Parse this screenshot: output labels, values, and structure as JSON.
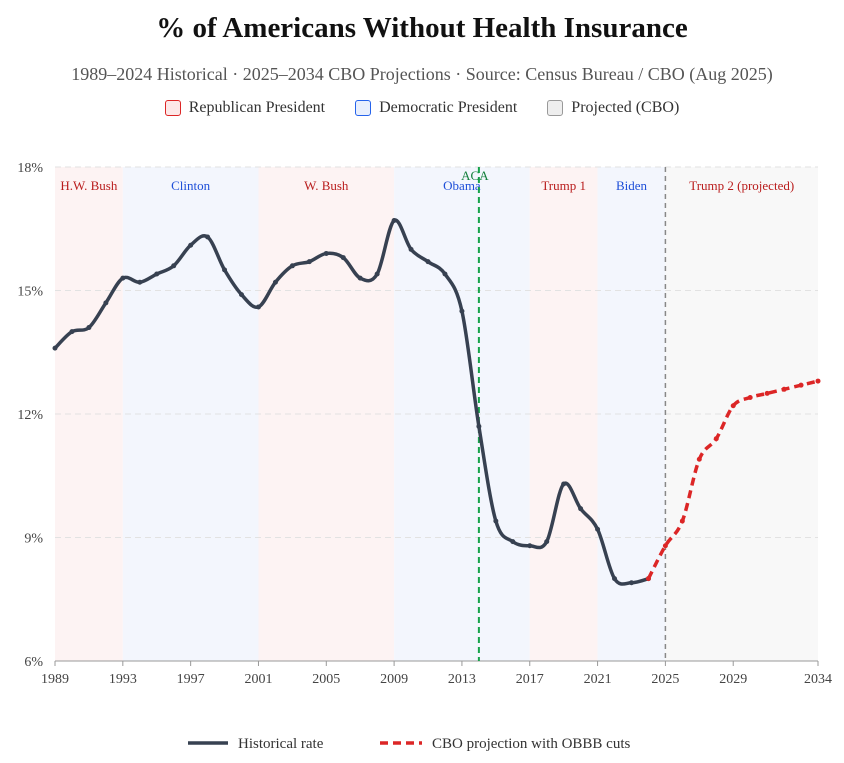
{
  "chart_data": {
    "type": "line",
    "title": "% of Americans Without Health Insurance",
    "subtitle": "1989–2024 Historical · 2025–2034 CBO Projections · Source: Census Bureau / CBO (Aug 2025)",
    "ylim": [
      6,
      18
    ],
    "xlim": [
      1989,
      2034
    ],
    "yticks": [
      6,
      9,
      12,
      15,
      18
    ],
    "ytick_labels": [
      "6%",
      "9%",
      "12%",
      "15%",
      "18%"
    ],
    "xticks": [
      1989,
      1993,
      1997,
      2001,
      2005,
      2009,
      2013,
      2017,
      2021,
      2025,
      2029,
      2034
    ],
    "xtick_labels": [
      "1989",
      "1993",
      "1997",
      "2001",
      "2005",
      "2009",
      "2013",
      "2017",
      "2021",
      "2025",
      "2029",
      "2034"
    ],
    "grid": "horizontal dashed",
    "legend_top": [
      {
        "label": "Republican President",
        "fill": "#fde8e8",
        "stroke": "#dc2626"
      },
      {
        "label": "Democratic President",
        "fill": "#e8effd",
        "stroke": "#2563eb"
      },
      {
        "label": "Projected (CBO)",
        "fill": "#eeeeee",
        "stroke": "#999999"
      }
    ],
    "legend_bottom": [
      {
        "label": "Historical rate",
        "color": "#374151",
        "dash": false
      },
      {
        "label": "CBO projection with OBBB cuts",
        "color": "#dc2626",
        "dash": true
      }
    ],
    "presidencies": [
      {
        "name": "H.W. Bush",
        "start": 1989,
        "end": 1993,
        "party": "R"
      },
      {
        "name": "Clinton",
        "start": 1993,
        "end": 2001,
        "party": "D"
      },
      {
        "name": "W. Bush",
        "start": 2001,
        "end": 2009,
        "party": "R"
      },
      {
        "name": "Obama",
        "start": 2009,
        "end": 2017,
        "party": "D"
      },
      {
        "name": "Trump 1",
        "start": 2017,
        "end": 2021,
        "party": "R"
      },
      {
        "name": "Biden",
        "start": 2021,
        "end": 2025,
        "party": "D"
      },
      {
        "name": "Trump 2 (projected)",
        "start": 2025,
        "end": 2034,
        "party": "P"
      }
    ],
    "annotations": [
      {
        "label": "ACA",
        "x": 2014,
        "color": "#16a34a"
      }
    ],
    "projection_start": 2025,
    "series": [
      {
        "name": "Historical rate",
        "color": "#374151",
        "x": [
          1989,
          1990,
          1991,
          1992,
          1993,
          1994,
          1995,
          1996,
          1997,
          1998,
          1999,
          2000,
          2001,
          2002,
          2003,
          2004,
          2005,
          2006,
          2007,
          2008,
          2009,
          2010,
          2011,
          2012,
          2013,
          2014,
          2015,
          2016,
          2017,
          2018,
          2019,
          2020,
          2021,
          2022,
          2023,
          2024
        ],
        "y": [
          13.6,
          14.0,
          14.1,
          14.7,
          15.3,
          15.2,
          15.4,
          15.6,
          16.1,
          16.3,
          15.5,
          14.9,
          14.6,
          15.2,
          15.6,
          15.7,
          15.9,
          15.8,
          15.3,
          15.4,
          16.7,
          16.0,
          15.7,
          15.4,
          14.5,
          11.7,
          9.4,
          8.9,
          8.8,
          8.9,
          10.3,
          9.7,
          9.2,
          8.0,
          7.9,
          8.0
        ]
      },
      {
        "name": "CBO projection with OBBB cuts",
        "color": "#dc2626",
        "x": [
          2024,
          2025,
          2026,
          2027,
          2028,
          2029,
          2030,
          2031,
          2032,
          2033,
          2034
        ],
        "y": [
          8.0,
          8.8,
          9.4,
          10.9,
          11.4,
          12.2,
          12.4,
          12.5,
          12.6,
          12.7,
          12.8
        ]
      }
    ]
  }
}
